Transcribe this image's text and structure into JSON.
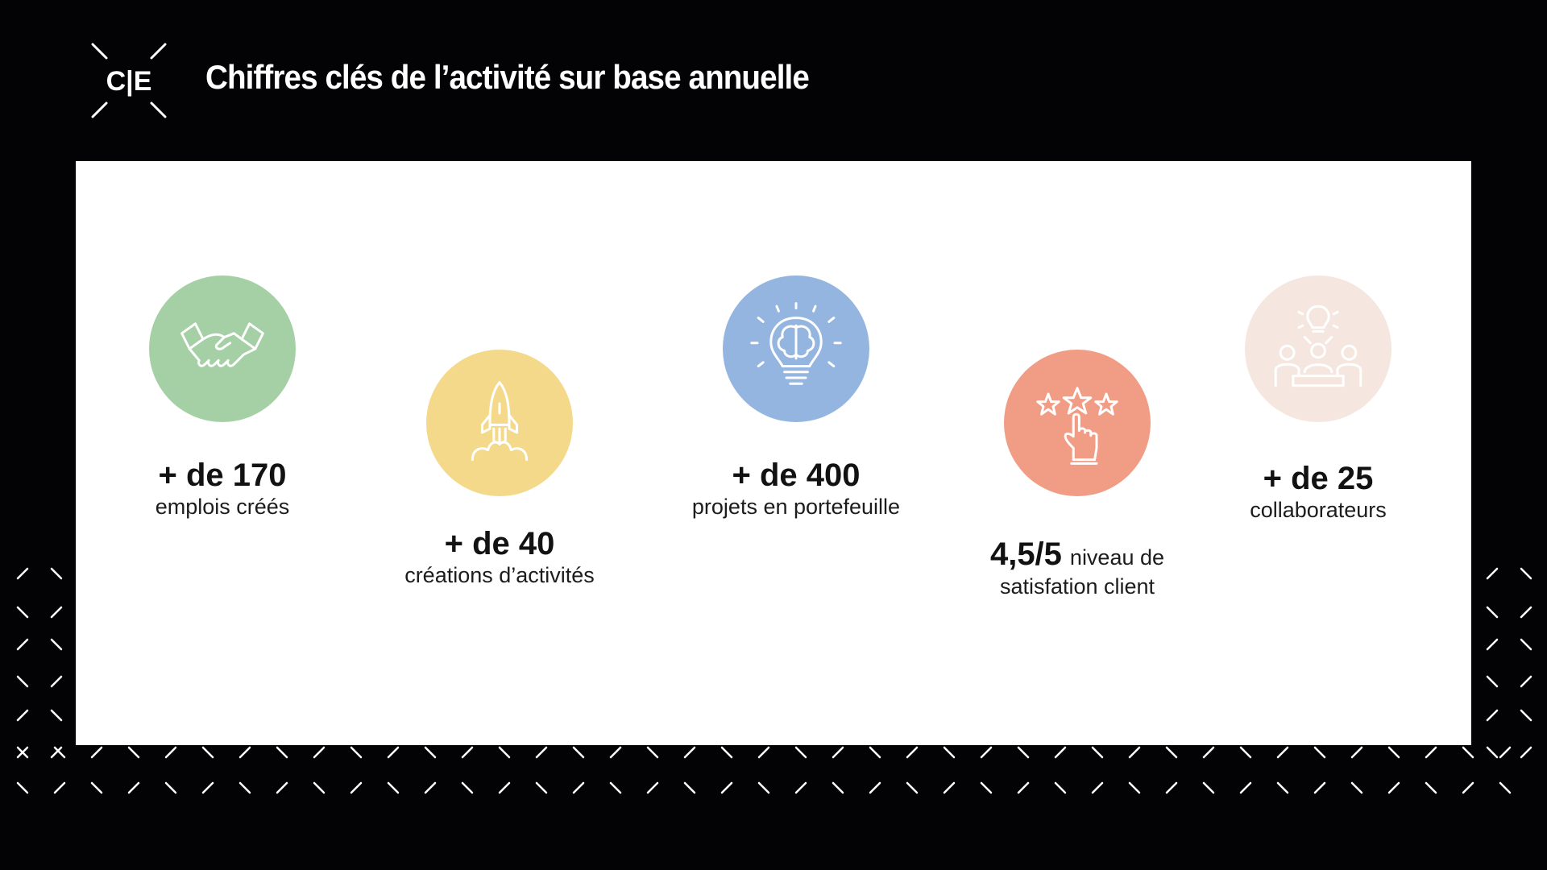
{
  "header": {
    "logo_text": "C|E",
    "title": "Chiffres clés de l’activité sur base annuelle"
  },
  "colors": {
    "background": "#030305",
    "panel": "#ffffff",
    "green": "#a5d0a5",
    "yellow": "#f4d98b",
    "blue": "#93b5e0",
    "salmon": "#f19c85",
    "beige": "#f5e7df"
  },
  "stats": [
    {
      "icon": "handshake-icon",
      "color": "#a5d0a5",
      "value": "+ de 170",
      "label": "emplois créés"
    },
    {
      "icon": "rocket-icon",
      "color": "#f4d98b",
      "value": "+ de 40",
      "label": "créations d’activités"
    },
    {
      "icon": "brain-lightbulb-icon",
      "color": "#93b5e0",
      "value": "+ de 400",
      "label": "projets en portefeuille"
    },
    {
      "icon": "star-rating-hand-icon",
      "color": "#f19c85",
      "value": "4,5/5",
      "label": "niveau de",
      "label2": "satisfation client"
    },
    {
      "icon": "team-idea-icon",
      "color": "#f5e7df",
      "value": "+ de 25",
      "label": "collaborateurs"
    }
  ]
}
